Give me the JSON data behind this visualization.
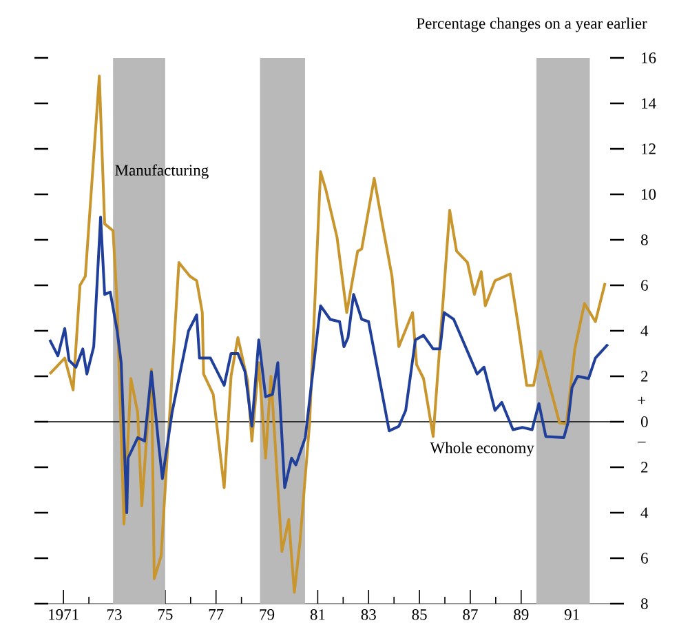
{
  "chart_data": {
    "type": "line",
    "ylabel": "Percentage changes on a year earlier",
    "xlim": [
      1970.4,
      1992.5
    ],
    "ylim": [
      -8,
      16
    ],
    "xticks": [
      {
        "value": 1971,
        "label": "1971"
      },
      {
        "value": 1973,
        "label": "73"
      },
      {
        "value": 1975,
        "label": "75"
      },
      {
        "value": 1977,
        "label": "77"
      },
      {
        "value": 1979,
        "label": "79"
      },
      {
        "value": 1981,
        "label": "81"
      },
      {
        "value": 1983,
        "label": "83"
      },
      {
        "value": 1985,
        "label": "85"
      },
      {
        "value": 1987,
        "label": "87"
      },
      {
        "value": 1989,
        "label": "89"
      },
      {
        "value": 1991,
        "label": "91"
      }
    ],
    "yticks": [
      {
        "value": -8,
        "label": "8"
      },
      {
        "value": -6,
        "label": "6"
      },
      {
        "value": -4,
        "label": "4"
      },
      {
        "value": -2,
        "label": "2"
      },
      0,
      2,
      4,
      6,
      8,
      10,
      12,
      14,
      16
    ],
    "series": [
      {
        "color": "#c9962e",
        "x": [
          1970.46,
          1971.05,
          1971.38,
          1971.65,
          1971.86,
          1972.41,
          1972.62,
          1972.95,
          1973.11,
          1973.38,
          1973.65,
          1973.92,
          1974.08,
          1974.46,
          1974.57,
          1974.84,
          1975.54,
          1975.97,
          1976.24,
          1976.46,
          1976.51,
          1976.89,
          1977.32,
          1977.59,
          1977.86,
          1978.24,
          1978.41,
          1978.68,
          1978.95,
          1979.16,
          1979.59,
          1979.86,
          1980.08,
          1980.3,
          1980.68,
          1981.11,
          1981.32,
          1981.76,
          1982.14,
          1982.57,
          1982.73,
          1983.22,
          1983.54,
          1983.92,
          1984.19,
          1984.73,
          1984.89,
          1985.16,
          1985.54,
          1986.19,
          1986.46,
          1986.89,
          1987.16,
          1987.43,
          1987.59,
          1987.97,
          1988.57,
          1988.89,
          1989.22,
          1989.49,
          1989.76,
          1990.14,
          1990.51,
          1990.78,
          1991.11,
          1991.49,
          1991.92,
          1992.3
        ],
        "values": [
          2.1,
          2.8,
          1.4,
          6.0,
          6.4,
          15.2,
          8.7,
          8.4,
          5.2,
          -4.5,
          1.9,
          0.4,
          -3.7,
          2.3,
          -6.9,
          -5.9,
          7.0,
          6.4,
          6.2,
          4.8,
          2.1,
          1.2,
          -2.9,
          2.0,
          3.7,
          1.8,
          -0.85,
          2.6,
          -1.6,
          2.0,
          -5.7,
          -4.3,
          -7.5,
          -5.3,
          -0.05,
          11.0,
          10.2,
          8.1,
          4.8,
          7.5,
          7.6,
          10.7,
          8.7,
          6.4,
          3.3,
          4.8,
          2.5,
          1.9,
          -0.65,
          9.3,
          7.5,
          7.0,
          5.6,
          6.6,
          5.1,
          6.2,
          6.5,
          4.2,
          1.6,
          1.6,
          3.1,
          1.5,
          -0.05,
          -0.1,
          3.2,
          5.2,
          4.4,
          6.1
        ]
      },
      {
        "color": "#1f3f9a",
        "x": [
          1970.46,
          1970.78,
          1971.05,
          1971.22,
          1971.49,
          1971.76,
          1971.92,
          1972.19,
          1972.46,
          1972.62,
          1972.84,
          1973.11,
          1973.27,
          1973.49,
          1973.54,
          1973.92,
          1974.19,
          1974.46,
          1974.73,
          1974.89,
          1975.27,
          1975.92,
          1976.24,
          1976.35,
          1976.78,
          1977.32,
          1977.59,
          1977.86,
          1978.14,
          1978.41,
          1978.68,
          1978.95,
          1979.22,
          1979.43,
          1979.7,
          1979.97,
          1980.14,
          1980.51,
          1981.11,
          1981.49,
          1981.86,
          1982.03,
          1982.19,
          1982.41,
          1982.73,
          1983.0,
          1983.81,
          1984.19,
          1984.46,
          1984.84,
          1985.16,
          1985.54,
          1985.81,
          1985.97,
          1986.35,
          1987.27,
          1987.54,
          1987.97,
          1988.24,
          1988.68,
          1989.05,
          1989.43,
          1989.7,
          1989.97,
          1990.68,
          1990.84,
          1991.0,
          1991.22,
          1991.65,
          1991.92,
          1992.41
        ],
        "values": [
          3.6,
          2.9,
          4.1,
          2.7,
          2.4,
          3.2,
          2.1,
          3.3,
          9.0,
          5.6,
          5.7,
          4.0,
          2.6,
          -4.0,
          -1.6,
          -0.7,
          -0.85,
          2.2,
          -0.85,
          -2.5,
          0.4,
          4.0,
          4.7,
          2.8,
          2.8,
          1.6,
          3.0,
          3.0,
          2.2,
          -0.2,
          3.6,
          1.1,
          1.2,
          2.6,
          -2.9,
          -1.6,
          -1.9,
          -0.7,
          5.1,
          4.5,
          4.4,
          3.3,
          3.7,
          5.6,
          4.5,
          4.4,
          -0.4,
          -0.2,
          0.5,
          3.6,
          3.8,
          3.2,
          3.2,
          4.8,
          4.5,
          2.1,
          2.4,
          0.5,
          0.85,
          -0.35,
          -0.25,
          -0.35,
          0.8,
          -0.65,
          -0.7,
          -0.05,
          1.5,
          2.0,
          1.9,
          2.8,
          3.4
        ]
      }
    ],
    "bands": [
      {
        "axis": "x",
        "from": 1972.95,
        "to": 1975.0,
        "color": "#b9b9b9"
      },
      {
        "axis": "x",
        "from": 1978.73,
        "to": 1980.5,
        "color": "#b9b9b9"
      },
      {
        "axis": "x",
        "from": 1989.6,
        "to": 1991.7,
        "color": "#b9b9b9"
      }
    ],
    "ref_lines": [
      {
        "axis": "y",
        "value": 0,
        "color": "#000000"
      }
    ],
    "annotations": [
      {
        "text": "Manufacturing",
        "x": 1972.95,
        "y": 11.0
      },
      "Whole economy",
      "+",
      "–"
    ]
  }
}
